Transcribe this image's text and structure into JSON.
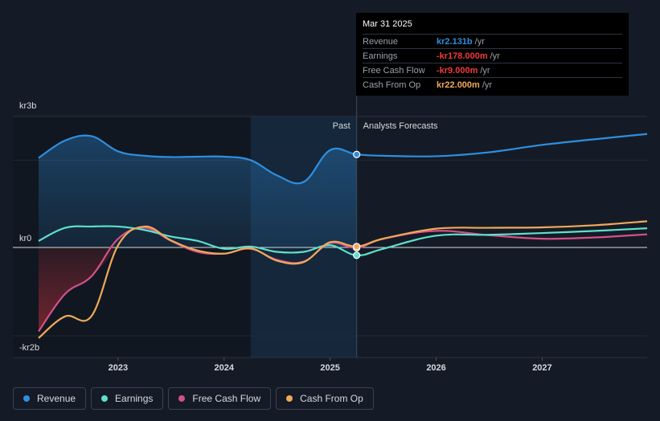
{
  "chart_data": {
    "type": "line",
    "y_labels": [
      "kr3b",
      "kr0",
      "-kr2b"
    ],
    "x_ticks": [
      "2023",
      "2024",
      "2025",
      "2026",
      "2027"
    ],
    "ylim": [
      -2000000000,
      3000000000
    ],
    "past_label": "Past",
    "forecast_label": "Analysts Forecasts",
    "series": [
      {
        "name": "Revenue",
        "color": "#2e8fe0",
        "x": [
          2022.25,
          2022.5,
          2022.75,
          2023.0,
          2023.25,
          2023.5,
          2023.75,
          2024.0,
          2024.25,
          2024.5,
          2024.75,
          2025.0,
          2025.25,
          2025.5,
          2026.0,
          2026.5,
          2027.0,
          2027.5,
          2027.99
        ],
        "y": [
          2050000000,
          2450000000,
          2550000000,
          2200000000,
          2100000000,
          2070000000,
          2080000000,
          2080000000,
          2000000000,
          1650000000,
          1500000000,
          2230000000,
          2131000000,
          2100000000,
          2090000000,
          2180000000,
          2350000000,
          2480000000,
          2600000000
        ]
      },
      {
        "name": "Earnings",
        "color": "#5de0cd",
        "x": [
          2022.25,
          2022.5,
          2022.75,
          2023.0,
          2023.25,
          2023.5,
          2023.75,
          2024.0,
          2024.25,
          2024.5,
          2024.75,
          2025.0,
          2025.25,
          2025.5,
          2026.0,
          2026.5,
          2027.0,
          2027.5,
          2027.99
        ],
        "y": [
          150000000,
          450000000,
          480000000,
          480000000,
          400000000,
          250000000,
          150000000,
          -30000000,
          20000000,
          -100000000,
          -100000000,
          50000000,
          -178000000,
          -30000000,
          270000000,
          290000000,
          330000000,
          380000000,
          440000000
        ]
      },
      {
        "name": "Free Cash Flow",
        "color": "#d4508a",
        "x": [
          2022.25,
          2022.5,
          2022.75,
          2023.0,
          2023.25,
          2023.5,
          2023.75,
          2024.0,
          2024.25,
          2024.5,
          2024.75,
          2025.0,
          2025.25,
          2025.5,
          2026.0,
          2026.5,
          2027.0,
          2027.5,
          2027.99
        ],
        "y": [
          -1900000000,
          -1050000000,
          -650000000,
          200000000,
          450000000,
          150000000,
          -100000000,
          -140000000,
          -30000000,
          -280000000,
          -320000000,
          100000000,
          -9000000,
          200000000,
          380000000,
          280000000,
          200000000,
          230000000,
          300000000
        ]
      },
      {
        "name": "Cash From Op",
        "color": "#f0a95a",
        "x": [
          2022.25,
          2022.5,
          2022.75,
          2023.0,
          2023.25,
          2023.5,
          2023.75,
          2024.0,
          2024.25,
          2024.5,
          2024.75,
          2025.0,
          2025.25,
          2025.5,
          2026.0,
          2026.5,
          2027.0,
          2027.5,
          2027.99
        ],
        "y": [
          -2050000000,
          -1560000000,
          -1550000000,
          50000000,
          480000000,
          160000000,
          -70000000,
          -140000000,
          -20000000,
          -300000000,
          -330000000,
          120000000,
          22000000,
          200000000,
          430000000,
          450000000,
          460000000,
          510000000,
          600000000
        ]
      }
    ]
  },
  "tooltip": {
    "date": "Mar 31 2025",
    "rows": [
      {
        "label": "Revenue",
        "value": "kr2.131b",
        "unit": "/yr",
        "color": "#2e8fe0"
      },
      {
        "label": "Earnings",
        "value": "-kr178.000m",
        "unit": "/yr",
        "color": "#ef3b3b"
      },
      {
        "label": "Free Cash Flow",
        "value": "-kr9.000m",
        "unit": "/yr",
        "color": "#ef3b3b"
      },
      {
        "label": "Cash From Op",
        "value": "kr22.000m",
        "unit": "/yr",
        "color": "#f0a95a"
      }
    ]
  },
  "legend": [
    {
      "label": "Revenue",
      "color": "#2e8fe0"
    },
    {
      "label": "Earnings",
      "color": "#5de0cd"
    },
    {
      "label": "Free Cash Flow",
      "color": "#d4508a"
    },
    {
      "label": "Cash From Op",
      "color": "#f0a95a"
    }
  ]
}
